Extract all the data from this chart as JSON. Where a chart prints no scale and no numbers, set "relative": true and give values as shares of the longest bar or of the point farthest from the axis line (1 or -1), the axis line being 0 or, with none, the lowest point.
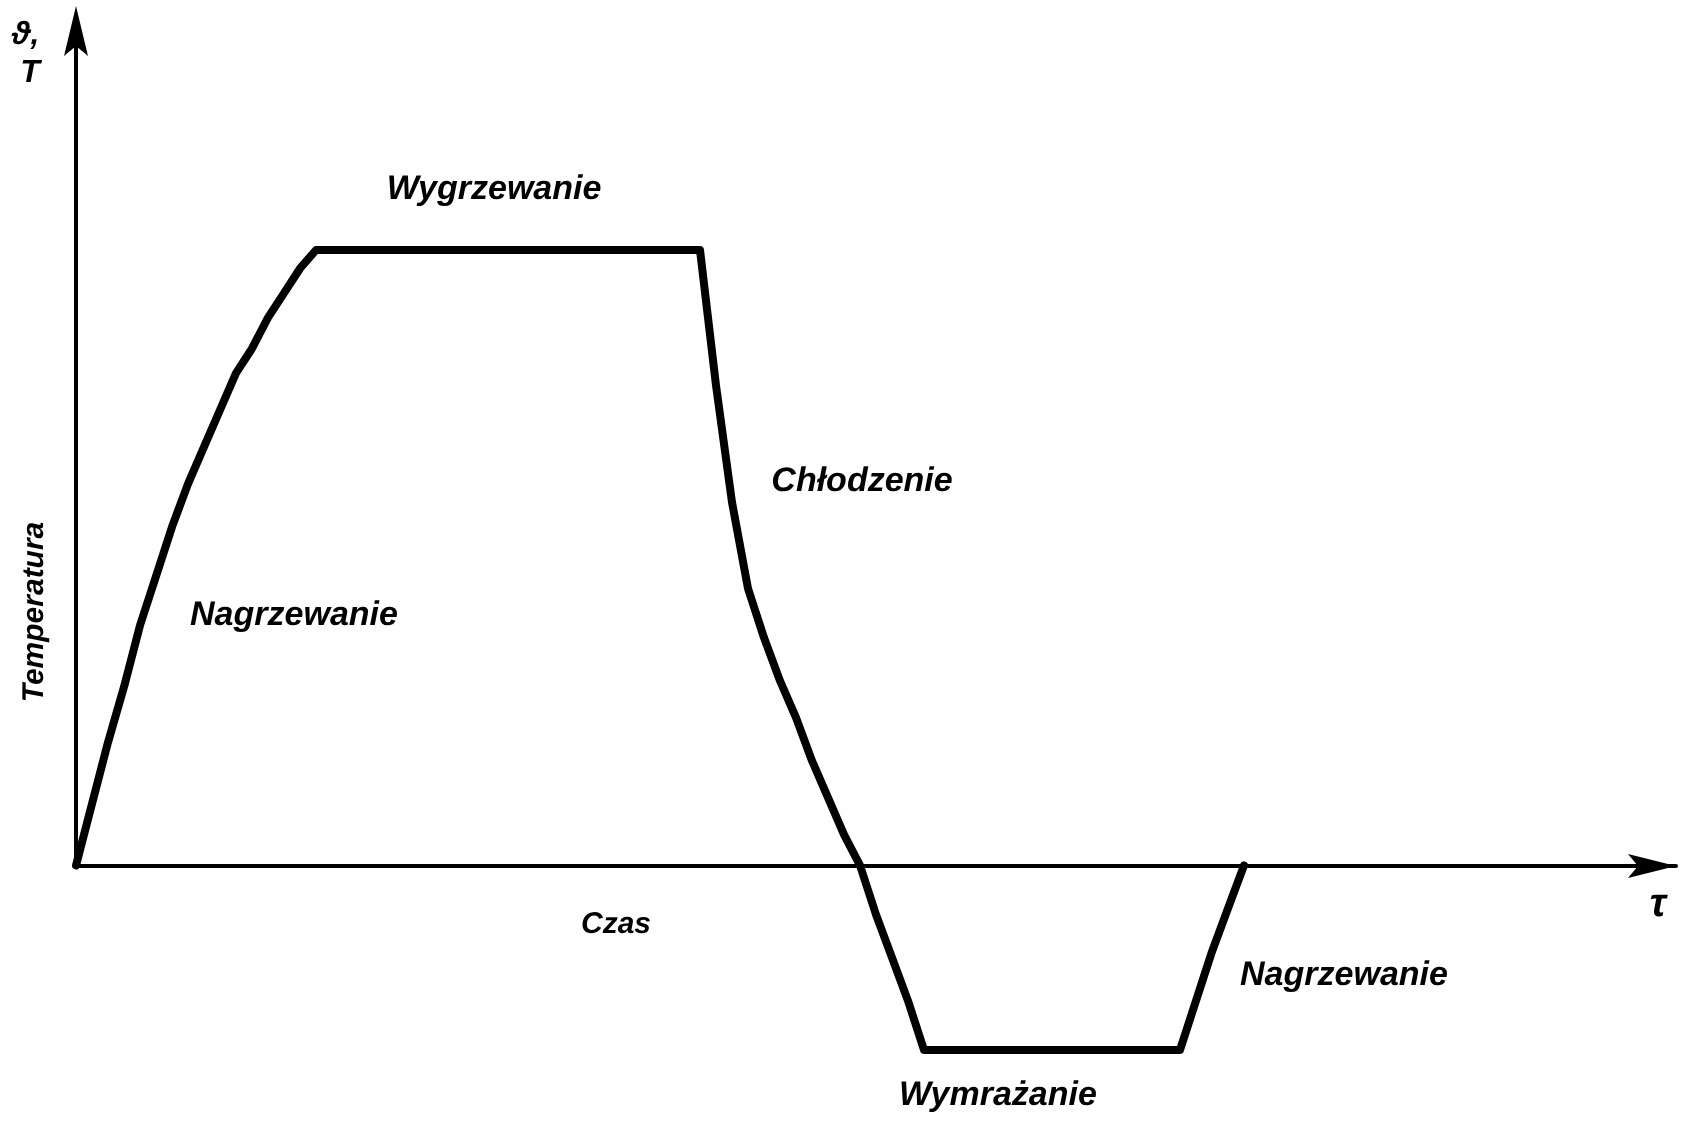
{
  "chart_data": {
    "type": "line",
    "xlabel": "Czas",
    "ylabel": "Temperatura",
    "annotations": [
      "ϑ, T",
      "τ",
      "Nagrzewanie",
      "Wygrzewanie",
      "Chłodzenie",
      "Wymrażanie",
      "Nagrzewanie"
    ],
    "categories": [
      null,
      null,
      null,
      null,
      null,
      null,
      null,
      null,
      null,
      null,
      null,
      null,
      null,
      null,
      null,
      null,
      null,
      null,
      null,
      null,
      null,
      null,
      null,
      null,
      null,
      null,
      null,
      null,
      null,
      null,
      null,
      null,
      null,
      null,
      null,
      null,
      null,
      null,
      null,
      null,
      null,
      null,
      null,
      null,
      null,
      null,
      null,
      null,
      null,
      null,
      null,
      null,
      null,
      null,
      null,
      null,
      null,
      null,
      null,
      null,
      null,
      null,
      null,
      null,
      null,
      null,
      null,
      null,
      null,
      null,
      null,
      null,
      null,
      null,
      null,
      null,
      null,
      null,
      null,
      null,
      null,
      null,
      null,
      null,
      null,
      null,
      null,
      null,
      null,
      null,
      null,
      null,
      null,
      null,
      null,
      null,
      null,
      null,
      null,
      null,
      null
    ],
    "series": [
      {
        "color": "#000000",
        "values": [
          0,
          0.1,
          0.2,
          0.29,
          0.39,
          0.47,
          0.55,
          0.62,
          0.68,
          0.74,
          0.8,
          0.84,
          0.89,
          0.93,
          0.97,
          1,
          1,
          1,
          1,
          1,
          1,
          1,
          1,
          1,
          1,
          1,
          1,
          1,
          1,
          1,
          1,
          1,
          1,
          1,
          1,
          1,
          1,
          1,
          1,
          1,
          0.78,
          0.59,
          0.45,
          0.37,
          0.3,
          0.24,
          0.17,
          0.11,
          0.05,
          0,
          -0.08,
          -0.15,
          -0.22,
          -0.3,
          -0.3,
          -0.3,
          -0.3,
          -0.3,
          -0.3,
          -0.3,
          -0.3,
          -0.3,
          -0.3,
          -0.3,
          -0.3,
          -0.3,
          -0.3,
          -0.3,
          -0.3,
          -0.3,
          -0.22,
          -0.14,
          -0.07,
          0,
          null,
          null,
          null,
          null,
          null,
          null,
          null,
          null,
          null,
          null,
          null,
          null,
          null,
          null,
          null,
          null,
          null,
          null,
          null,
          null,
          null,
          null,
          null,
          null,
          null,
          null,
          null
        ]
      }
    ],
    "relative": true,
    "marker": "none",
    "line_style": "solid"
  }
}
